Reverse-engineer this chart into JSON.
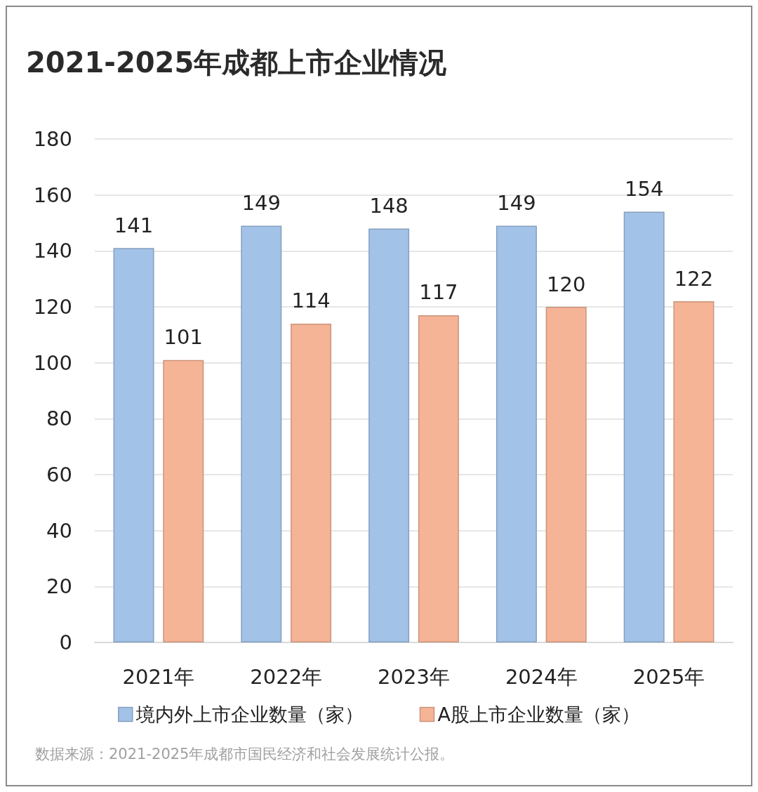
{
  "chart_data": {
    "type": "bar",
    "title": "2021-2025年成都上市企业情况",
    "categories": [
      "2021年",
      "2022年",
      "2023年",
      "2024年",
      "2025年"
    ],
    "series": [
      {
        "name": "境内外上市企业数量（家）",
        "color": "#a3c2e8",
        "values": [
          141,
          149,
          148,
          149,
          154
        ]
      },
      {
        "name": "A股上市企业数量（家）",
        "color": "#f6b497",
        "values": [
          101,
          114,
          117,
          120,
          122
        ]
      }
    ],
    "ylim": [
      0,
      180
    ],
    "yticks": [
      0,
      20,
      40,
      60,
      80,
      100,
      120,
      140,
      160,
      180
    ],
    "grid": "y",
    "legend": "bottom",
    "data_labels": true,
    "annotations": [
      "数据来源：2021-2025年成都市国民经济和社会发展统计公报。"
    ]
  }
}
